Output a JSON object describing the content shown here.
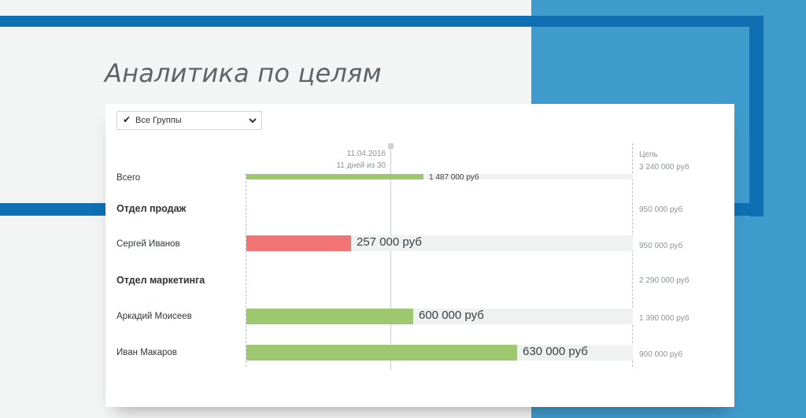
{
  "page": {
    "title": "Аналитика по целям"
  },
  "colors": {
    "accent_blue": "#0e70b2",
    "panel_blue": "#3f9bcb",
    "bar_green": "#9ec86f",
    "bar_red": "#f27474"
  },
  "filter": {
    "label": "Все Группы",
    "checked": true,
    "check_icon": "check-icon",
    "dropdown_icon": "chevron-down-icon"
  },
  "timeline": {
    "date": "11.04.2016",
    "days": "11 дней из 30",
    "progress": 0.3667
  },
  "goal_header": "Цель",
  "rows": [
    {
      "label": "Всего",
      "kind": "total",
      "amount": "1 487 000 руб",
      "value": 1487000,
      "goal": "3 240 000 руб",
      "goal_value": 3240000,
      "status": "green"
    },
    {
      "label": "Отдел продаж",
      "kind": "group",
      "goal": "950 000 руб",
      "goal_value": 950000
    },
    {
      "label": "Сергей Иванов",
      "kind": "person",
      "amount": "257 000 руб",
      "value": 257000,
      "goal": "950 000 руб",
      "goal_value": 950000,
      "status": "red"
    },
    {
      "label": "Отдел маркетинга",
      "kind": "group",
      "goal": "2 290 000 руб",
      "goal_value": 2290000
    },
    {
      "label": "Аркадий Моисеев",
      "kind": "person",
      "amount": "600 000 руб",
      "value": 600000,
      "goal": "1 390 000 руб",
      "goal_value": 1390000,
      "status": "green"
    },
    {
      "label": "Иван Макаров",
      "kind": "person",
      "amount": "630 000 руб",
      "value": 630000,
      "goal": "900 000 руб",
      "goal_value": 900000,
      "status": "green"
    }
  ]
}
